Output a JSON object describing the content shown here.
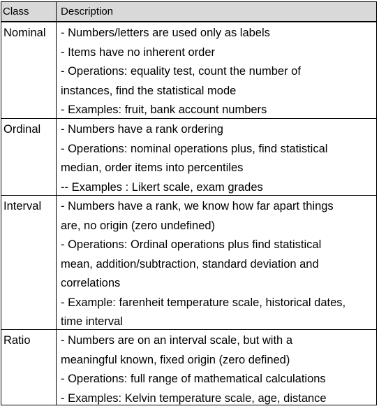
{
  "header": {
    "class": "Class",
    "description": "Description"
  },
  "rows": [
    {
      "class": "Nominal",
      "lines": [
        "- Numbers/letters are used only as labels",
        "- Items have no inherent order",
        "- Operations:  equality test, count the number of",
        "instances, find the statistical mode",
        "- Examples: fruit, bank account numbers"
      ]
    },
    {
      "class": "Ordinal",
      "lines": [
        "- Numbers have a rank ordering",
        "- Operations: nominal operations plus, find statistical",
        "median, order items into percentiles",
        "-- Examples : Likert scale, exam grades"
      ]
    },
    {
      "class": "Interval",
      "lines": [
        "- Numbers have a rank,  we know how far apart things",
        "are, no origin (zero undefined)",
        "- Operations: Ordinal operations plus find statistical",
        "mean, addition/subtraction, standard deviation and",
        "correlations",
        "- Example: farenheit temperature scale, historical dates,",
        "time interval"
      ]
    },
    {
      "class": "Ratio",
      "lines": [
        "- Numbers are on an interval scale, but with a",
        "meaningful known, fixed origin (zero defined)",
        "- Operations: full range of mathematical calculations",
        "- Examples: Kelvin temperature scale, age, distance"
      ]
    }
  ]
}
